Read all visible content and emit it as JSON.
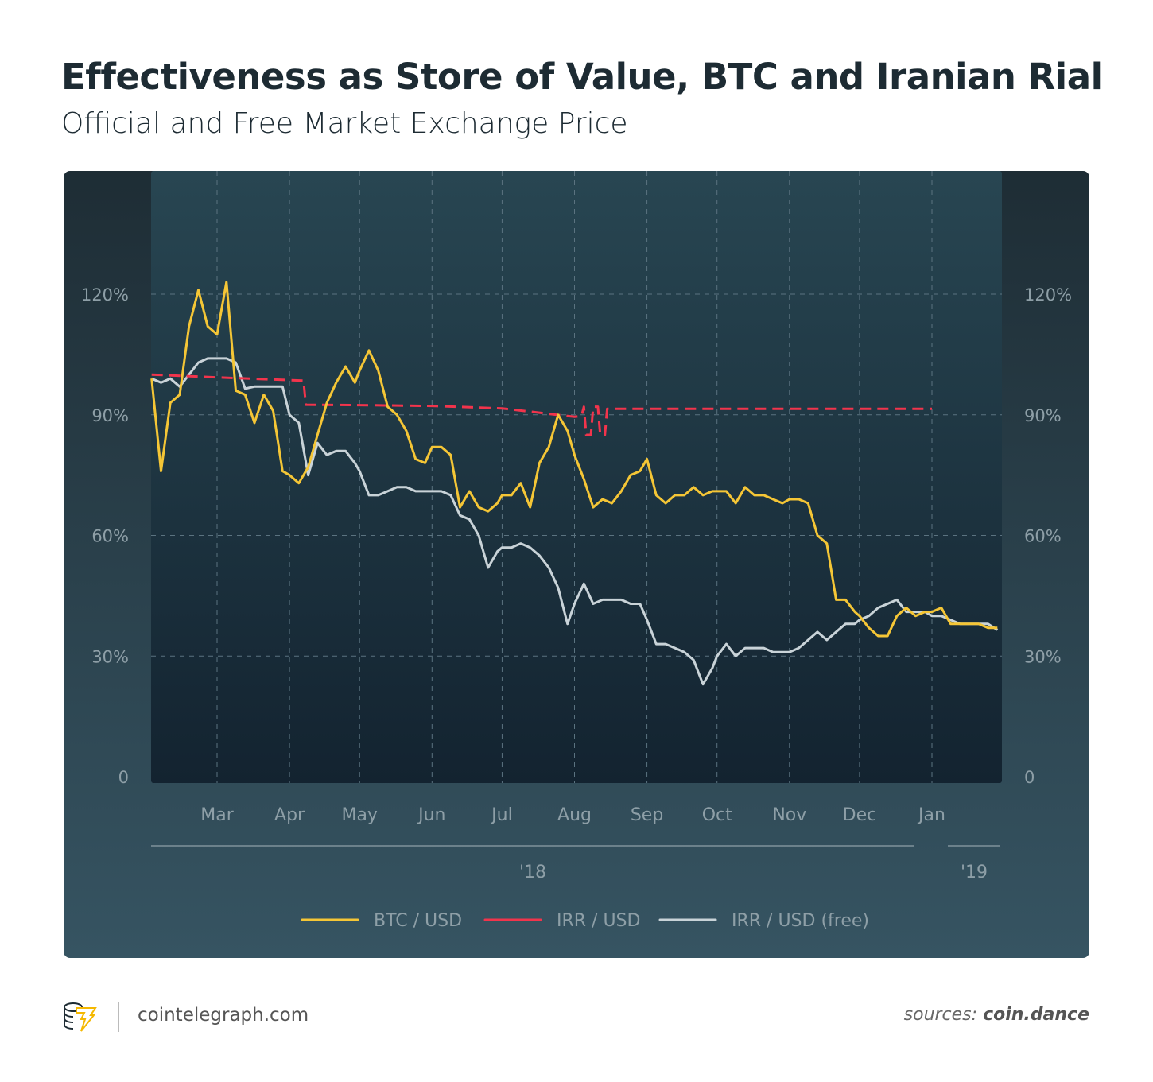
{
  "header": {
    "title": "Effectiveness as Store of Value, BTC and Iranian Rial",
    "subtitle": "Official and Free Market Exchange Price"
  },
  "footer": {
    "site": "cointelegraph.com",
    "source_prefix": "sources:",
    "source_name": "coin.dance",
    "logo_text": "cointelegraph"
  },
  "chart_data": {
    "type": "line",
    "title": "Effectiveness as Store of Value, BTC and Iranian Rial",
    "subtitle": "Official and Free Market Exchange Price",
    "ylim": [
      0,
      130
    ],
    "y_ticks": [
      {
        "v": 0,
        "label": "0"
      },
      {
        "v": 30,
        "label": "30%"
      },
      {
        "v": 60,
        "label": "60%"
      },
      {
        "v": 90,
        "label": "90%"
      },
      {
        "v": 120,
        "label": "120%"
      }
    ],
    "x_ticks": [
      {
        "date": "2018-03-01",
        "label": "Mar"
      },
      {
        "date": "2018-04-01",
        "label": "Apr"
      },
      {
        "date": "2018-05-01",
        "label": "May"
      },
      {
        "date": "2018-06-01",
        "label": "Jun"
      },
      {
        "date": "2018-07-01",
        "label": "Jul"
      },
      {
        "date": "2018-08-01",
        "label": "Aug"
      },
      {
        "date": "2018-09-01",
        "label": "Sep"
      },
      {
        "date": "2018-10-01",
        "label": "Oct"
      },
      {
        "date": "2018-11-01",
        "label": "Nov"
      },
      {
        "date": "2018-12-01",
        "label": "Dec"
      },
      {
        "date": "2019-01-01",
        "label": "Jan"
      }
    ],
    "year_labels": [
      {
        "label": "'18"
      },
      {
        "label": "'19"
      }
    ],
    "grid": true,
    "legend_position": "bottom",
    "series": [
      {
        "name": "BTC / USD",
        "color": "#f5c636",
        "style": "solid",
        "points": [
          [
            "2018-02-01",
            99
          ],
          [
            "2018-02-05",
            76
          ],
          [
            "2018-02-09",
            93
          ],
          [
            "2018-02-13",
            95
          ],
          [
            "2018-02-17",
            112
          ],
          [
            "2018-02-21",
            121
          ],
          [
            "2018-02-25",
            112
          ],
          [
            "2018-03-01",
            110
          ],
          [
            "2018-03-05",
            123
          ],
          [
            "2018-03-09",
            96
          ],
          [
            "2018-03-13",
            95
          ],
          [
            "2018-03-17",
            88
          ],
          [
            "2018-03-21",
            95
          ],
          [
            "2018-03-25",
            91
          ],
          [
            "2018-03-29",
            76
          ],
          [
            "2018-04-01",
            75
          ],
          [
            "2018-04-05",
            73
          ],
          [
            "2018-04-09",
            77
          ],
          [
            "2018-04-13",
            85
          ],
          [
            "2018-04-17",
            93
          ],
          [
            "2018-04-21",
            98
          ],
          [
            "2018-04-25",
            102
          ],
          [
            "2018-04-29",
            98
          ],
          [
            "2018-05-01",
            101
          ],
          [
            "2018-05-05",
            106
          ],
          [
            "2018-05-09",
            101
          ],
          [
            "2018-05-13",
            92
          ],
          [
            "2018-05-17",
            90
          ],
          [
            "2018-05-21",
            86
          ],
          [
            "2018-05-25",
            79
          ],
          [
            "2018-05-29",
            78
          ],
          [
            "2018-06-01",
            82
          ],
          [
            "2018-06-05",
            82
          ],
          [
            "2018-06-09",
            80
          ],
          [
            "2018-06-13",
            67
          ],
          [
            "2018-06-17",
            71
          ],
          [
            "2018-06-21",
            67
          ],
          [
            "2018-06-25",
            66
          ],
          [
            "2018-06-29",
            68
          ],
          [
            "2018-07-01",
            70
          ],
          [
            "2018-07-05",
            70
          ],
          [
            "2018-07-09",
            73
          ],
          [
            "2018-07-13",
            67
          ],
          [
            "2018-07-17",
            78
          ],
          [
            "2018-07-21",
            82
          ],
          [
            "2018-07-25",
            90
          ],
          [
            "2018-07-29",
            86
          ],
          [
            "2018-08-01",
            80
          ],
          [
            "2018-08-05",
            74
          ],
          [
            "2018-08-09",
            67
          ],
          [
            "2018-08-13",
            69
          ],
          [
            "2018-08-17",
            68
          ],
          [
            "2018-08-21",
            71
          ],
          [
            "2018-08-25",
            75
          ],
          [
            "2018-08-29",
            76
          ],
          [
            "2018-09-01",
            79
          ],
          [
            "2018-09-05",
            70
          ],
          [
            "2018-09-09",
            68
          ],
          [
            "2018-09-13",
            70
          ],
          [
            "2018-09-17",
            70
          ],
          [
            "2018-09-21",
            72
          ],
          [
            "2018-09-25",
            70
          ],
          [
            "2018-09-29",
            71
          ],
          [
            "2018-10-01",
            71
          ],
          [
            "2018-10-05",
            71
          ],
          [
            "2018-10-09",
            68
          ],
          [
            "2018-10-13",
            72
          ],
          [
            "2018-10-17",
            70
          ],
          [
            "2018-10-21",
            70
          ],
          [
            "2018-10-25",
            69
          ],
          [
            "2018-10-29",
            68
          ],
          [
            "2018-11-01",
            69
          ],
          [
            "2018-11-05",
            69
          ],
          [
            "2018-11-09",
            68
          ],
          [
            "2018-11-13",
            60
          ],
          [
            "2018-11-17",
            58
          ],
          [
            "2018-11-21",
            44
          ],
          [
            "2018-11-25",
            44
          ],
          [
            "2018-11-29",
            41
          ],
          [
            "2018-12-01",
            40
          ],
          [
            "2018-12-05",
            37
          ],
          [
            "2018-12-09",
            35
          ],
          [
            "2018-12-13",
            35
          ],
          [
            "2018-12-17",
            40
          ],
          [
            "2018-12-21",
            42
          ],
          [
            "2018-12-25",
            40
          ],
          [
            "2018-12-29",
            41
          ],
          [
            "2019-01-01",
            41
          ],
          [
            "2019-01-05",
            42
          ],
          [
            "2019-01-09",
            38
          ],
          [
            "2019-01-13",
            38
          ],
          [
            "2019-01-17",
            38
          ],
          [
            "2019-01-21",
            38
          ],
          [
            "2019-01-25",
            37
          ],
          [
            "2019-01-29",
            37
          ]
        ]
      },
      {
        "name": "IRR / USD",
        "color": "#f2344c",
        "style": "dashed",
        "points": [
          [
            "2018-02-01",
            100
          ],
          [
            "2018-03-01",
            99.3
          ],
          [
            "2018-04-07",
            98.5
          ],
          [
            "2018-04-08",
            92.5
          ],
          [
            "2018-05-01",
            92.4
          ],
          [
            "2018-06-01",
            92.2
          ],
          [
            "2018-07-01",
            91.6
          ],
          [
            "2018-07-20",
            90.3
          ],
          [
            "2018-08-01",
            89.5
          ],
          [
            "2018-08-04",
            89.7
          ],
          [
            "2018-08-05",
            92
          ],
          [
            "2018-08-06",
            85
          ],
          [
            "2018-08-08",
            85
          ],
          [
            "2018-08-09",
            92
          ],
          [
            "2018-08-11",
            92
          ],
          [
            "2018-08-12",
            85
          ],
          [
            "2018-08-14",
            85
          ],
          [
            "2018-08-15",
            91.5
          ],
          [
            "2019-01-01",
            91.5
          ]
        ]
      },
      {
        "name": "IRR / USD (free)",
        "color": "#c9d3d8",
        "style": "solid",
        "points": [
          [
            "2018-02-01",
            99
          ],
          [
            "2018-02-05",
            98
          ],
          [
            "2018-02-09",
            99
          ],
          [
            "2018-02-13",
            97
          ],
          [
            "2018-02-17",
            100
          ],
          [
            "2018-02-21",
            103
          ],
          [
            "2018-02-25",
            104
          ],
          [
            "2018-03-01",
            104
          ],
          [
            "2018-03-05",
            104
          ],
          [
            "2018-03-09",
            103
          ],
          [
            "2018-03-13",
            96.5
          ],
          [
            "2018-03-17",
            97
          ],
          [
            "2018-03-21",
            97
          ],
          [
            "2018-03-25",
            97
          ],
          [
            "2018-03-29",
            97
          ],
          [
            "2018-04-01",
            90
          ],
          [
            "2018-04-05",
            88
          ],
          [
            "2018-04-09",
            75
          ],
          [
            "2018-04-13",
            83
          ],
          [
            "2018-04-17",
            80
          ],
          [
            "2018-04-21",
            81
          ],
          [
            "2018-04-25",
            81
          ],
          [
            "2018-04-29",
            78
          ],
          [
            "2018-05-01",
            76
          ],
          [
            "2018-05-05",
            70
          ],
          [
            "2018-05-09",
            70
          ],
          [
            "2018-05-13",
            71
          ],
          [
            "2018-05-17",
            72
          ],
          [
            "2018-05-21",
            72
          ],
          [
            "2018-05-25",
            71
          ],
          [
            "2018-05-29",
            71
          ],
          [
            "2018-06-01",
            71
          ],
          [
            "2018-06-05",
            71
          ],
          [
            "2018-06-09",
            70
          ],
          [
            "2018-06-13",
            65
          ],
          [
            "2018-06-17",
            64
          ],
          [
            "2018-06-21",
            60
          ],
          [
            "2018-06-25",
            52
          ],
          [
            "2018-06-29",
            56
          ],
          [
            "2018-07-01",
            57
          ],
          [
            "2018-07-05",
            57
          ],
          [
            "2018-07-09",
            58
          ],
          [
            "2018-07-13",
            57
          ],
          [
            "2018-07-17",
            55
          ],
          [
            "2018-07-21",
            52
          ],
          [
            "2018-07-25",
            47
          ],
          [
            "2018-07-29",
            38
          ],
          [
            "2018-08-01",
            43
          ],
          [
            "2018-08-05",
            48
          ],
          [
            "2018-08-09",
            43
          ],
          [
            "2018-08-13",
            44
          ],
          [
            "2018-08-17",
            44
          ],
          [
            "2018-08-21",
            44
          ],
          [
            "2018-08-25",
            43
          ],
          [
            "2018-08-29",
            43
          ],
          [
            "2018-09-01",
            39
          ],
          [
            "2018-09-05",
            33
          ],
          [
            "2018-09-09",
            33
          ],
          [
            "2018-09-13",
            32
          ],
          [
            "2018-09-17",
            31
          ],
          [
            "2018-09-21",
            29
          ],
          [
            "2018-09-25",
            23
          ],
          [
            "2018-09-29",
            27
          ],
          [
            "2018-10-01",
            30
          ],
          [
            "2018-10-05",
            33
          ],
          [
            "2018-10-09",
            30
          ],
          [
            "2018-10-13",
            32
          ],
          [
            "2018-10-17",
            32
          ],
          [
            "2018-10-21",
            32
          ],
          [
            "2018-10-25",
            31
          ],
          [
            "2018-10-29",
            31
          ],
          [
            "2018-11-01",
            31
          ],
          [
            "2018-11-05",
            32
          ],
          [
            "2018-11-09",
            34
          ],
          [
            "2018-11-13",
            36
          ],
          [
            "2018-11-17",
            34
          ],
          [
            "2018-11-21",
            36
          ],
          [
            "2018-11-25",
            38
          ],
          [
            "2018-11-29",
            38
          ],
          [
            "2018-12-01",
            39
          ],
          [
            "2018-12-05",
            40
          ],
          [
            "2018-12-09",
            42
          ],
          [
            "2018-12-13",
            43
          ],
          [
            "2018-12-17",
            44
          ],
          [
            "2018-12-21",
            41
          ],
          [
            "2018-12-25",
            41
          ],
          [
            "2018-12-29",
            41
          ],
          [
            "2019-01-01",
            40
          ],
          [
            "2019-01-05",
            40
          ],
          [
            "2019-01-09",
            39
          ],
          [
            "2019-01-13",
            38
          ],
          [
            "2019-01-17",
            38
          ],
          [
            "2019-01-21",
            38
          ],
          [
            "2019-01-25",
            38
          ],
          [
            "2019-01-29",
            36.5
          ]
        ]
      }
    ]
  }
}
